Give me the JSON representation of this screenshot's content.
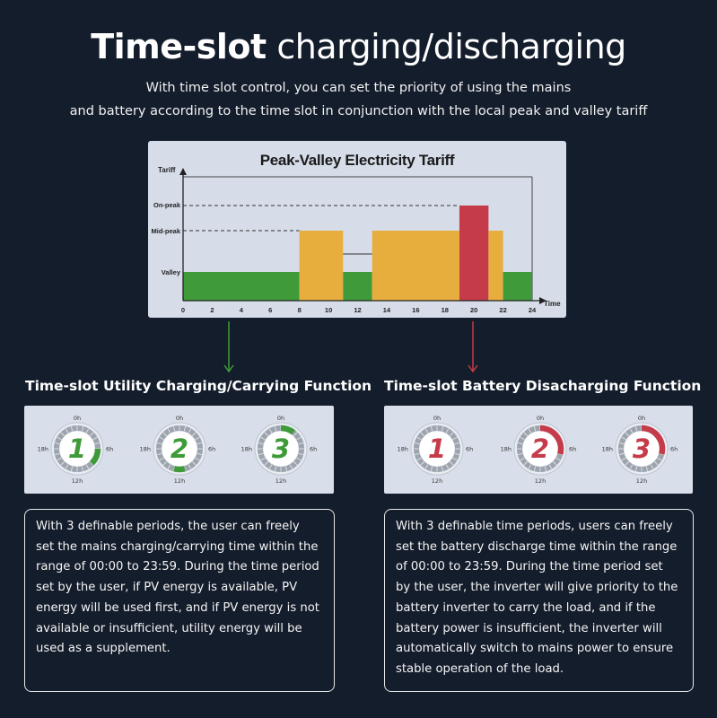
{
  "header": {
    "title_bold": "Time-slot",
    "title_rest": "charging/discharging",
    "subtitle_line1": "With time slot control, you can set the priority of using the mains",
    "subtitle_line2": "and battery according to the time slot in conjunction with the local peak and valley tariff"
  },
  "chart_data": {
    "type": "bar",
    "title": "Peak-Valley Electricity Tariff",
    "ylabel": "Tariff",
    "xlabel": "Time",
    "xlim": [
      0,
      24
    ],
    "x_ticks": [
      "0",
      "2",
      "4",
      "6",
      "8",
      "10",
      "12",
      "14",
      "16",
      "18",
      "20",
      "22",
      "24"
    ],
    "y_levels": [
      "Valley",
      "Mid-peak",
      "On-peak"
    ],
    "colors": {
      "Valley": "#3f9b3a",
      "Mid-peak": "#e8ae3d",
      "On-peak": "#c53b49"
    },
    "segments": [
      {
        "start": 0,
        "end": 8,
        "level": "Valley"
      },
      {
        "start": 8,
        "end": 11,
        "level": "Mid-peak"
      },
      {
        "start": 11,
        "end": 13,
        "level": "Valley"
      },
      {
        "start": 13,
        "end": 19,
        "level": "Mid-peak"
      },
      {
        "start": 19,
        "end": 21,
        "level": "On-peak"
      },
      {
        "start": 21,
        "end": 22,
        "level": "Mid-peak"
      },
      {
        "start": 22,
        "end": 24,
        "level": "Valley"
      }
    ]
  },
  "left_section": {
    "heading": "Time-slot Utility Charging/Carrying Function",
    "accent": "#3f9b3a",
    "dials": [
      {
        "number": "1",
        "arc_start_h": 6,
        "arc_end_h": 9
      },
      {
        "number": "2",
        "arc_start_h": 11,
        "arc_end_h": 13
      },
      {
        "number": "3",
        "arc_start_h": 0,
        "arc_end_h": 2.5
      }
    ],
    "paragraph": "With 3 definable periods, the user can freely set the mains charging/carrying time within the range of 00:00 to 23:59. During the time period set by the user, if PV energy is available, PV energy will be used first, and if PV energy is not available or insufficient, utility energy will be used as a supplement."
  },
  "right_section": {
    "heading": "Time-slot Battery Disacharging Function",
    "accent": "#c53b49",
    "dials": [
      {
        "number": "1",
        "arc_start_h": 0,
        "arc_end_h": 0
      },
      {
        "number": "2",
        "arc_start_h": 0,
        "arc_end_h": 7
      },
      {
        "number": "3",
        "arc_start_h": 0,
        "arc_end_h": 7
      }
    ],
    "paragraph": "With 3 definable time periods, users can freely set the battery discharge time within the range of 00:00 to 23:59. During the time period set by the user, the inverter will give priority to the battery inverter to carry the load, and if the battery power is insufficient, the inverter will automatically switch to mains power to ensure stable operation of the load."
  },
  "dial_labels": {
    "top": "0h",
    "right": "6h",
    "bottom": "12h",
    "left": "18h"
  }
}
